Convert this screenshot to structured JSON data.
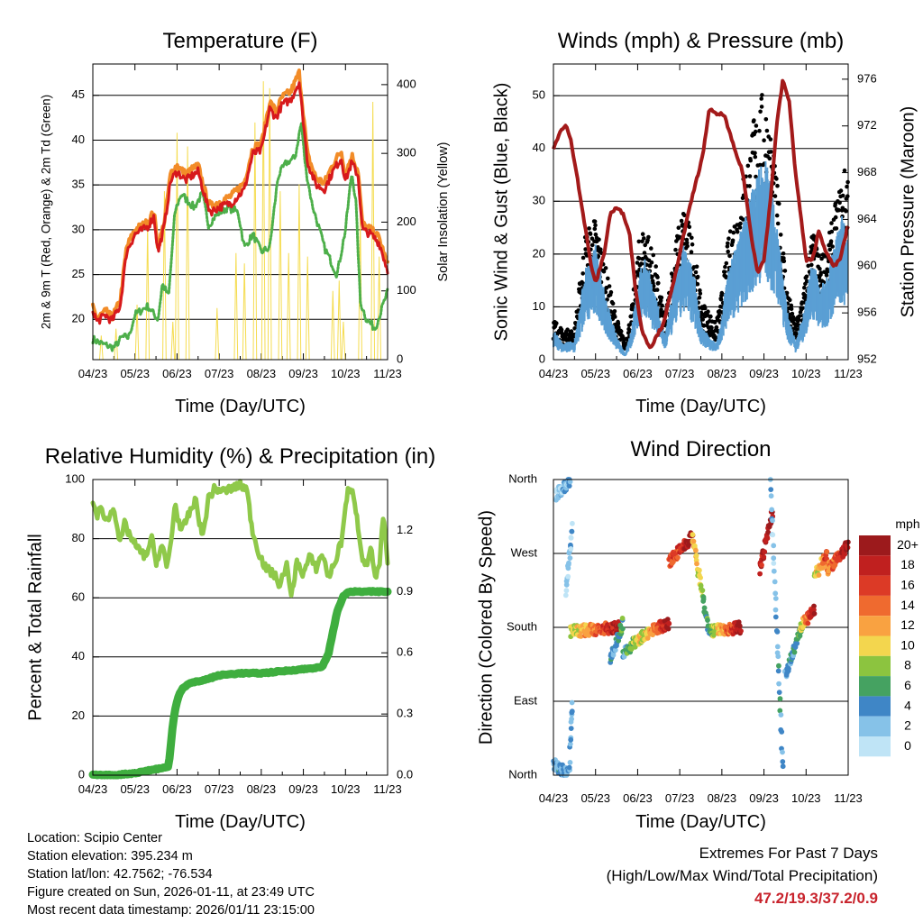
{
  "colors": {
    "temp_2m": "#d7191c",
    "temp_9m": "#f28c28",
    "dewpoint": "#4daf4a",
    "solar": "#f5dc50",
    "wind": "#5a9fd4",
    "gust": "#000000",
    "pressure": "#a31a1a",
    "rh": "#8fc94a",
    "precip": "#3fae3f",
    "extremes": "#c8232c"
  },
  "wind_color_scale": [
    {
      "label": "0",
      "color": "#bfe4f6"
    },
    {
      "label": "2",
      "color": "#86c2e8"
    },
    {
      "label": "4",
      "color": "#3f86c6"
    },
    {
      "label": "6",
      "color": "#45a261"
    },
    {
      "label": "8",
      "color": "#8cc43f"
    },
    {
      "label": "10",
      "color": "#f3d64e"
    },
    {
      "label": "12",
      "color": "#f9a241"
    },
    {
      "label": "14",
      "color": "#ef6a2f"
    },
    {
      "label": "16",
      "color": "#dc3a26"
    },
    {
      "label": "18",
      "color": "#c0201f"
    },
    {
      "label": "20+",
      "color": "#9c1a1c"
    }
  ],
  "chart_data": [
    {
      "type": "line",
      "title": "Temperature (F)",
      "xlabel": "Time (Day/UTC)",
      "ylabel": "2m & 9m T (Red, Orange) & 2m Td (Green)",
      "y2label": "Solar Insolation (Yellow)",
      "x_ticks": [
        "04/23",
        "05/23",
        "06/23",
        "07/23",
        "08/23",
        "09/23",
        "10/23",
        "11/23"
      ],
      "xlim": [
        0,
        7
      ],
      "ylim": [
        15.5,
        48.5
      ],
      "y2lim": [
        0,
        430
      ],
      "y_ticks": [
        20,
        25,
        30,
        35,
        40,
        45
      ],
      "y2_ticks": [
        0,
        100,
        200,
        300,
        400
      ],
      "grid": true,
      "series": [
        {
          "name": "2m T",
          "color": "red",
          "x": [
            0,
            0.1,
            0.3,
            0.45,
            0.65,
            0.8,
            1.0,
            1.3,
            1.45,
            1.55,
            1.7,
            1.85,
            2.0,
            2.2,
            2.5,
            2.7,
            2.8,
            3.0,
            3.3,
            3.6,
            3.8,
            4.0,
            4.2,
            4.35,
            4.5,
            4.7,
            4.9,
            5.1,
            5.3,
            5.5,
            5.7,
            5.9,
            6.0,
            6.15,
            6.3,
            6.4,
            6.6,
            6.8,
            7.0
          ],
          "y": [
            21,
            19.7,
            20.5,
            19.8,
            21.5,
            27.5,
            29.5,
            30.3,
            31.5,
            27.5,
            30.5,
            35.5,
            36.5,
            35.5,
            36.5,
            33,
            32,
            32.5,
            33,
            34.5,
            38.5,
            38.8,
            43.5,
            42.5,
            44,
            44.5,
            46.5,
            37.5,
            35,
            34.5,
            36.5,
            38,
            35.5,
            37.5,
            36,
            30,
            29.5,
            28.5,
            25.5
          ]
        },
        {
          "name": "9m T",
          "color": "orange",
          "x": [
            0,
            0.1,
            0.3,
            0.45,
            0.65,
            0.8,
            1.0,
            1.3,
            1.45,
            1.55,
            1.7,
            1.85,
            2.0,
            2.2,
            2.5,
            2.7,
            2.8,
            3.0,
            3.3,
            3.6,
            3.8,
            4.0,
            4.2,
            4.35,
            4.5,
            4.7,
            4.9,
            5.1,
            5.3,
            5.5,
            5.7,
            5.9,
            6.0,
            6.15,
            6.3,
            6.4,
            6.6,
            6.8,
            7.0
          ],
          "y": [
            21.4,
            20.1,
            20.9,
            20.2,
            22,
            28,
            30,
            30.8,
            32,
            28,
            31,
            36.3,
            37.2,
            36.2,
            37.2,
            33.6,
            32.6,
            33.1,
            33.8,
            35.3,
            39.2,
            39.5,
            44.3,
            43.2,
            44.8,
            45.4,
            47.5,
            38.3,
            35.8,
            35.2,
            37.3,
            38.8,
            36.2,
            38.3,
            36.6,
            30.6,
            30,
            29.1,
            26
          ]
        },
        {
          "name": "2m Td",
          "color": "green",
          "x": [
            0,
            0.2,
            0.5,
            0.7,
            0.85,
            1.0,
            1.3,
            1.55,
            1.65,
            1.8,
            1.95,
            2.1,
            2.4,
            2.6,
            2.75,
            2.9,
            3.2,
            3.45,
            3.6,
            3.8,
            4.0,
            4.2,
            4.4,
            4.6,
            4.8,
            4.95,
            5.05,
            5.2,
            5.5,
            5.8,
            6.0,
            6.15,
            6.25,
            6.35,
            6.5,
            6.7,
            6.85,
            7.0
          ],
          "y": [
            17.8,
            17.3,
            16.8,
            18,
            18,
            20.5,
            21.5,
            20,
            24,
            22.5,
            32,
            34,
            32.5,
            34,
            30.5,
            31.5,
            32.5,
            32,
            28,
            29.5,
            27.5,
            28,
            36,
            37.5,
            38,
            42,
            37,
            33,
            28,
            25,
            30,
            36.5,
            33,
            22,
            20,
            19,
            21,
            23
          ]
        }
      ],
      "solar": {
        "name": "Solar Insolation",
        "color": "yellow",
        "days": [
          0.2,
          0.55,
          1.05,
          1.3,
          1.7,
          1.9,
          2.0,
          2.25,
          2.95,
          3.4,
          3.6,
          3.85,
          4.05,
          4.2,
          4.45,
          4.65,
          4.9,
          5.1,
          5.7,
          5.85,
          5.95,
          6.35,
          6.65,
          6.8
        ],
        "peaks": [
          35,
          45,
          80,
          195,
          245,
          55,
          330,
          310,
          75,
          155,
          140,
          345,
          405,
          395,
          245,
          155,
          255,
          150,
          100,
          115,
          55,
          210,
          375,
          150
        ]
      }
    },
    {
      "type": "scatter",
      "title": "Winds (mph) & Pressure (mb)",
      "xlabel": "Time (Day/UTC)",
      "ylabel": "Sonic Wind & Gust (Blue, Black)",
      "y2label": "Station Pressure (Maroon)",
      "x_ticks": [
        "04/23",
        "05/23",
        "06/23",
        "07/23",
        "08/23",
        "09/23",
        "10/23",
        "11/23"
      ],
      "xlim": [
        0,
        7
      ],
      "ylim": [
        0,
        56
      ],
      "y2lim": [
        952,
        977.3
      ],
      "y_ticks": [
        0,
        10,
        20,
        30,
        40,
        50
      ],
      "y2_ticks": [
        952,
        956,
        960,
        964,
        968,
        972,
        976
      ],
      "grid": true,
      "wind_envelope": {
        "x": [
          0,
          0.2,
          0.5,
          0.75,
          1.0,
          1.25,
          1.5,
          1.7,
          1.85,
          2.05,
          2.2,
          2.45,
          2.65,
          2.9,
          3.1,
          3.35,
          3.5,
          3.7,
          3.85,
          3.95,
          4.15,
          4.4,
          4.6,
          4.75,
          4.9,
          5.05,
          5.2,
          5.4,
          5.55,
          5.75,
          5.95,
          6.15,
          6.35,
          6.5,
          6.7,
          6.85,
          7.0
        ],
        "y": [
          5,
          3,
          3,
          15,
          19,
          10,
          4,
          1,
          5,
          15,
          17,
          10,
          4,
          14,
          19,
          14,
          6,
          4,
          3,
          5,
          15,
          20,
          25,
          29,
          32,
          33,
          28,
          18,
          8,
          3,
          8,
          17,
          12,
          14,
          20,
          24,
          20
        ]
      },
      "gust_envelope": {
        "x": [
          0,
          0.2,
          0.5,
          0.75,
          1.0,
          1.25,
          1.5,
          1.7,
          1.85,
          2.05,
          2.2,
          2.45,
          2.65,
          2.9,
          3.1,
          3.35,
          3.5,
          3.7,
          3.85,
          3.95,
          4.15,
          4.4,
          4.6,
          4.75,
          4.9,
          5.05,
          5.2,
          5.4,
          5.55,
          5.75,
          5.95,
          6.15,
          6.35,
          6.5,
          6.7,
          6.85,
          7.0
        ],
        "y": [
          7,
          5,
          5,
          21,
          24,
          15,
          7,
          3,
          8,
          21,
          23,
          15,
          7,
          20,
          26,
          19,
          10,
          8,
          6,
          9,
          20,
          27,
          34,
          40,
          44,
          44,
          36,
          24,
          12,
          6,
          12,
          22,
          17,
          19,
          26,
          30,
          34
        ]
      },
      "pressure": {
        "x": [
          0,
          0.15,
          0.3,
          0.4,
          0.55,
          0.7,
          0.9,
          1.0,
          1.2,
          1.35,
          1.5,
          1.65,
          1.8,
          1.95,
          2.1,
          2.3,
          2.6,
          2.85,
          3.05,
          3.3,
          3.55,
          3.7,
          3.85,
          4.05,
          4.3,
          4.5,
          4.7,
          4.85,
          5.0,
          5.15,
          5.3,
          5.45,
          5.6,
          5.75,
          5.9,
          6.0,
          6.15,
          6.3,
          6.5,
          6.65,
          6.8,
          6.9,
          7.0
        ],
        "y": [
          970,
          971.5,
          972,
          971,
          968,
          964.5,
          960,
          958.5,
          961,
          964.5,
          965,
          964.5,
          963,
          958,
          954.5,
          953,
          955,
          958.5,
          962,
          966,
          969.5,
          973.5,
          973,
          973,
          970,
          968,
          962.5,
          959.5,
          960.5,
          965.5,
          972,
          976,
          974,
          968,
          963.5,
          960.5,
          960.5,
          963,
          961,
          960,
          960.5,
          962,
          963.5
        ]
      }
    },
    {
      "type": "line",
      "title": "Relative Humidity (%) & Precipitation (in)",
      "xlabel": "Time (Day/UTC)",
      "ylabel": "Percent & Total Rainfall",
      "x_ticks": [
        "04/23",
        "05/23",
        "06/23",
        "07/23",
        "08/23",
        "09/23",
        "10/23",
        "11/23"
      ],
      "xlim": [
        0,
        7
      ],
      "ylim": [
        0,
        100
      ],
      "y2lim": [
        0,
        1.45
      ],
      "y_ticks": [
        0,
        20,
        40,
        60,
        80,
        100
      ],
      "y2_ticks": [
        "0.0",
        "0.3",
        "0.6",
        "0.9",
        "1.2"
      ],
      "grid": true,
      "series": [
        {
          "name": "Relative Humidity",
          "color": "light-green",
          "x": [
            0,
            0.1,
            0.2,
            0.35,
            0.5,
            0.65,
            0.75,
            0.85,
            1.0,
            1.1,
            1.25,
            1.4,
            1.5,
            1.65,
            1.75,
            1.85,
            1.95,
            2.1,
            2.3,
            2.45,
            2.6,
            2.75,
            2.9,
            3.1,
            3.3,
            3.5,
            3.65,
            3.8,
            3.95,
            4.1,
            4.3,
            4.45,
            4.6,
            4.7,
            4.85,
            5.0,
            5.15,
            5.3,
            5.45,
            5.6,
            5.75,
            5.9,
            6.05,
            6.2,
            6.3,
            6.4,
            6.5,
            6.6,
            6.7,
            6.8,
            6.9,
            7.0
          ],
          "y": [
            92,
            88,
            90,
            86,
            91,
            78,
            85,
            82,
            78,
            76,
            74,
            80,
            72,
            78,
            70,
            78,
            92,
            82,
            89,
            93,
            80,
            94,
            97,
            96,
            97,
            98,
            97,
            82,
            75,
            70,
            68,
            64,
            72,
            60,
            72,
            68,
            74,
            70,
            75,
            67,
            72,
            79,
            96,
            95,
            84,
            74,
            70,
            78,
            66,
            70,
            88,
            72
          ]
        },
        {
          "name": "Total Precipitation",
          "color": "green",
          "units": "in",
          "x": [
            0,
            0.5,
            1.0,
            1.5,
            1.8,
            1.9,
            1.95,
            2.05,
            2.15,
            2.3,
            2.5,
            2.7,
            3.0,
            3.5,
            4.0,
            4.5,
            5.0,
            5.45,
            5.6,
            5.7,
            5.8,
            5.95,
            6.1,
            6.5,
            7.0
          ],
          "y": [
            0,
            0,
            0.01,
            0.03,
            0.04,
            0.25,
            0.32,
            0.4,
            0.43,
            0.45,
            0.46,
            0.47,
            0.49,
            0.5,
            0.5,
            0.51,
            0.52,
            0.53,
            0.6,
            0.7,
            0.8,
            0.88,
            0.9,
            0.9,
            0.9
          ]
        }
      ]
    },
    {
      "type": "scatter",
      "title": "Wind Direction",
      "xlabel": "Time (Day/UTC)",
      "ylabel": "Direction (Colored By Speed)",
      "x_ticks": [
        "04/23",
        "05/23",
        "06/23",
        "07/23",
        "08/23",
        "09/23",
        "10/23",
        "11/23"
      ],
      "xlim": [
        0,
        7
      ],
      "ylim": [
        0,
        360
      ],
      "y_ticks": [
        "North",
        "East",
        "South",
        "West",
        "North"
      ],
      "colorbar_title": "mph",
      "grid": true,
      "segments": [
        {
          "x": [
            0,
            0.35
          ],
          "dir": [
            15,
            0
          ],
          "speed": [
            4,
            2
          ]
        },
        {
          "x": [
            0.05,
            0.4
          ],
          "dir": [
            340,
            360
          ],
          "speed": [
            1,
            3
          ]
        },
        {
          "x": [
            0.3,
            0.45
          ],
          "dir": [
            225,
            300
          ],
          "speed": [
            1,
            2
          ]
        },
        {
          "x": [
            0.38,
            0.45
          ],
          "dir": [
            10,
            90
          ],
          "speed": [
            2,
            2
          ]
        },
        {
          "x": [
            0.4,
            1.6
          ],
          "dir": [
            175,
            180
          ],
          "speed": [
            8,
            20
          ]
        },
        {
          "x": [
            1.35,
            1.65
          ],
          "dir": [
            140,
            185
          ],
          "speed": [
            3,
            6
          ]
        },
        {
          "x": [
            1.65,
            2.15
          ],
          "dir": [
            150,
            170
          ],
          "speed": [
            4,
            12
          ]
        },
        {
          "x": [
            2.1,
            2.75
          ],
          "dir": [
            170,
            185
          ],
          "speed": [
            8,
            20
          ]
        },
        {
          "x": [
            2.75,
            3.3
          ],
          "dir": [
            260,
            290
          ],
          "speed": [
            14,
            20
          ]
        },
        {
          "x": [
            3.3,
            3.7
          ],
          "dir": [
            290,
            170
          ],
          "speed": [
            12,
            4
          ]
        },
        {
          "x": [
            3.7,
            4.45
          ],
          "dir": [
            175,
            180
          ],
          "speed": [
            6,
            20
          ]
        },
        {
          "x": [
            4.9,
            5.2
          ],
          "dir": [
            250,
            320
          ],
          "speed": [
            18,
            20
          ]
        },
        {
          "x": [
            5.15,
            5.45
          ],
          "dir": [
            360,
            5
          ],
          "speed": [
            2,
            4
          ]
        },
        {
          "x": [
            5.5,
            5.9
          ],
          "dir": [
            120,
            180
          ],
          "speed": [
            3,
            6
          ]
        },
        {
          "x": [
            5.85,
            6.2
          ],
          "dir": [
            180,
            200
          ],
          "speed": [
            8,
            20
          ]
        },
        {
          "x": [
            6.2,
            6.5
          ],
          "dir": [
            240,
            270
          ],
          "speed": [
            8,
            16
          ]
        },
        {
          "x": [
            6.5,
            7.0
          ],
          "dir": [
            250,
            280
          ],
          "speed": [
            12,
            20
          ]
        }
      ]
    }
  ],
  "station": {
    "location": "Location: Scipio Center",
    "elevation": "Station elevation: 395.234 m",
    "latlon": "Station lat/lon: 42.7562; -76.534",
    "created": "Figure created on Sun, 2026-01-11, at 23:49 UTC",
    "recent": "Most recent data timestamp: 2026/01/11 23:15:00"
  },
  "extremes": {
    "heading": "Extremes For Past 7 Days",
    "legend": "(High/Low/Max Wind/Total Precipitation)",
    "values": "47.2/19.3/37.2/0.9"
  }
}
